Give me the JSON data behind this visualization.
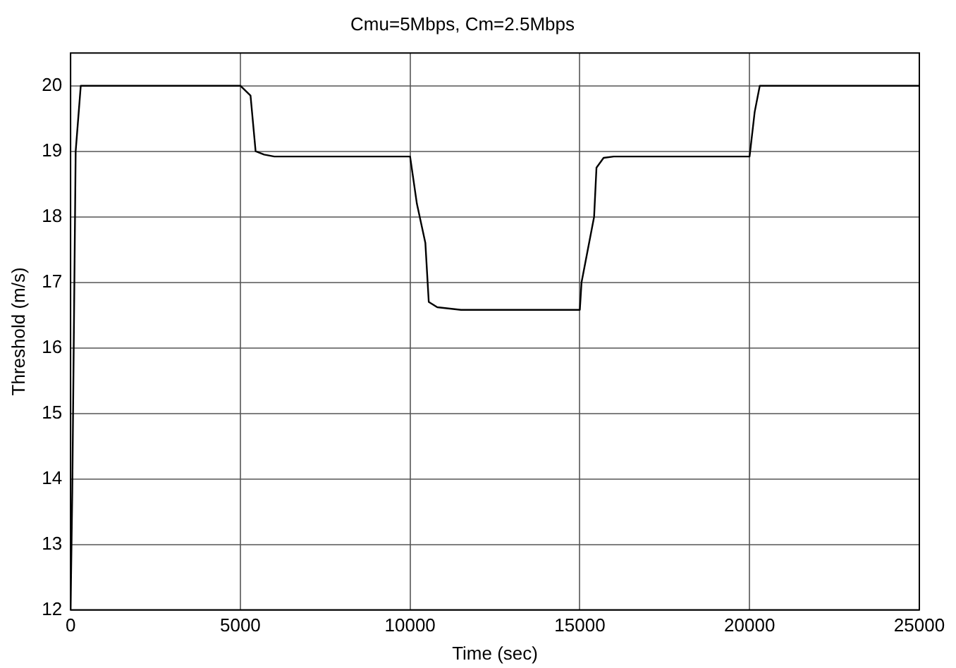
{
  "chart_data": {
    "type": "line",
    "title": "Cmu=5Mbps, Cm=2.5Mbps",
    "xlabel": "Time (sec)",
    "ylabel": "Threshold (m/s)",
    "series": [
      {
        "color": "#000000",
        "x": [
          0,
          50,
          150,
          300,
          5000,
          5300,
          5450,
          5700,
          6000,
          10000,
          10200,
          10450,
          10550,
          10800,
          11500,
          15000,
          15050,
          15420,
          15490,
          15700,
          16000,
          20000,
          20150,
          20300,
          25000
        ],
        "values": [
          12,
          13.8,
          19,
          20,
          20,
          19.85,
          19.0,
          18.95,
          18.92,
          18.92,
          18.2,
          17.6,
          16.7,
          16.62,
          16.58,
          16.58,
          17.0,
          18.0,
          18.75,
          18.9,
          18.92,
          18.92,
          19.6,
          20,
          20
        ]
      }
    ],
    "xlim": [
      0,
      25000
    ],
    "xticks": [
      0,
      5000,
      10000,
      15000,
      20000,
      25000
    ],
    "ylim": [
      12,
      20.5
    ],
    "yticks": [
      12,
      13,
      14,
      15,
      16,
      17,
      18,
      19,
      20
    ],
    "grid": true,
    "legend": false,
    "marker": "none",
    "line_style": "solid"
  }
}
